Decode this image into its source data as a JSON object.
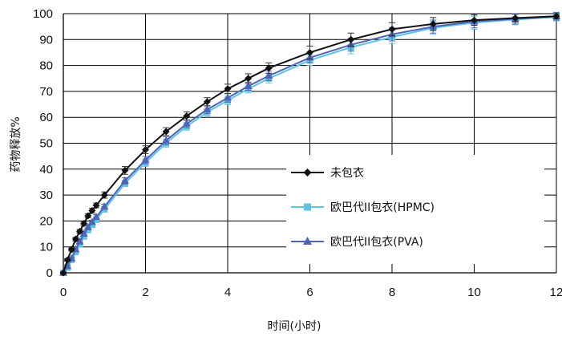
{
  "chart_data": {
    "type": "line",
    "xlabel": "时间(小时)",
    "ylabel": "药物释放%",
    "xlim": [
      0,
      12
    ],
    "ylim": [
      0,
      100
    ],
    "xticks": [
      "0",
      "2",
      "4",
      "6",
      "8",
      "10",
      "12"
    ],
    "yticks": [
      "0",
      "10",
      "20",
      "30",
      "40",
      "50",
      "60",
      "70",
      "80",
      "90",
      "100"
    ],
    "grid": "major, both axes",
    "legend_position": "lower-right",
    "series": [
      {
        "name": "未包衣",
        "color": "#111111",
        "marker": "diamond",
        "x": [
          0,
          0.1,
          0.2,
          0.3,
          0.4,
          0.5,
          0.6,
          0.7,
          0.8,
          1.0,
          1.5,
          2,
          2.5,
          3,
          3.5,
          4,
          4.5,
          5,
          6,
          7,
          8,
          9,
          10,
          11,
          12
        ],
        "y": [
          0,
          5,
          9,
          13,
          16,
          19,
          22,
          24,
          26,
          30,
          39.5,
          47.5,
          54.5,
          60.5,
          66,
          71,
          75,
          79,
          85,
          90,
          94,
          96,
          97.5,
          98.3,
          99
        ],
        "err": [
          0.3,
          0.5,
          0.6,
          0.7,
          0.7,
          0.8,
          0.8,
          0.9,
          0.9,
          1.2,
          1.5,
          1.5,
          1.5,
          1.6,
          1.6,
          1.8,
          1.8,
          2,
          2.5,
          2.5,
          2.5,
          2.5,
          2,
          1.5,
          1
        ]
      },
      {
        "name": "欧巴代II包衣(HPMC)",
        "color": "#5fc4e2",
        "marker": "square",
        "x": [
          0,
          0.1,
          0.2,
          0.3,
          0.4,
          0.5,
          0.6,
          0.7,
          0.8,
          1.0,
          1.5,
          2,
          2.5,
          3,
          3.5,
          4,
          4.5,
          5,
          6,
          7,
          8,
          9,
          10,
          11,
          12
        ],
        "y": [
          0,
          2,
          5,
          8,
          11,
          14,
          16.5,
          18.5,
          20.5,
          24.5,
          34.5,
          42.5,
          50,
          56.5,
          62,
          66.5,
          71,
          75,
          82,
          87,
          91,
          94.5,
          96.5,
          97.7,
          98.7
        ],
        "err": [
          0.3,
          0.5,
          0.6,
          0.6,
          0.7,
          0.7,
          0.8,
          0.8,
          0.9,
          1,
          1.2,
          1.4,
          1.5,
          1.5,
          1.5,
          1.6,
          1.6,
          1.8,
          2,
          2.5,
          2.5,
          2.5,
          2.5,
          2,
          1.5
        ]
      },
      {
        "name": "欧巴代II包衣(PVA)",
        "color": "#4f63b8",
        "marker": "triangle",
        "x": [
          0,
          0.1,
          0.2,
          0.3,
          0.4,
          0.5,
          0.6,
          0.7,
          0.8,
          1.0,
          1.5,
          2,
          2.5,
          3,
          3.5,
          4,
          4.5,
          5,
          6,
          7,
          8,
          9,
          10,
          11,
          12
        ],
        "y": [
          0,
          2.5,
          5.5,
          9,
          12,
          15,
          17.5,
          19.5,
          21.5,
          25.5,
          35.5,
          43.5,
          51,
          57.5,
          63,
          67.5,
          72,
          76,
          83,
          88,
          92,
          95,
          97,
          98,
          99
        ],
        "err": [
          0.3,
          0.5,
          0.6,
          0.6,
          0.7,
          0.7,
          0.8,
          0.8,
          0.9,
          1,
          1.2,
          1.4,
          1.5,
          1.5,
          1.5,
          1.6,
          1.6,
          1.8,
          2,
          2.5,
          2.5,
          2.5,
          2.5,
          2,
          1.5
        ]
      }
    ]
  }
}
